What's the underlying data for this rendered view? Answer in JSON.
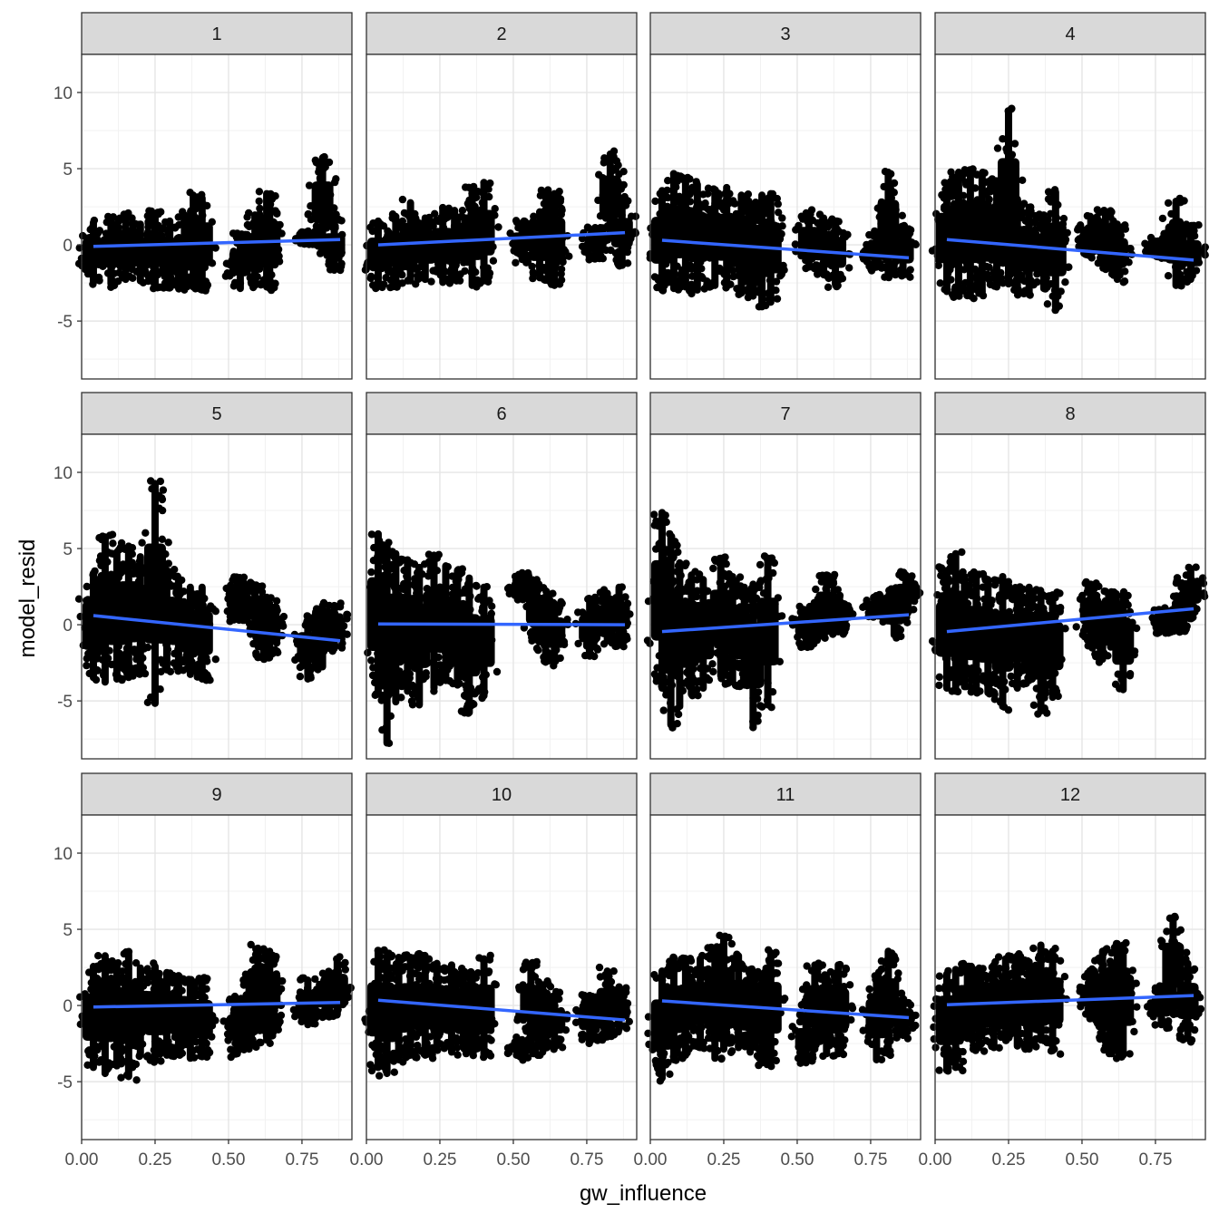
{
  "chart_data": {
    "type": "scatter",
    "facet_var_values": [
      "1",
      "2",
      "3",
      "4",
      "5",
      "6",
      "7",
      "8",
      "9",
      "10",
      "11",
      "12"
    ],
    "xlabel": "gw_influence",
    "ylabel": "model_resid",
    "xlim": [
      0.0,
      0.92
    ],
    "ylim": [
      -8.8,
      12.5
    ],
    "x_ticks": [
      0.0,
      0.25,
      0.5,
      0.75
    ],
    "x_tick_labels": [
      "0.00",
      "0.25",
      "0.50",
      "0.75"
    ],
    "y_ticks": [
      -5,
      0,
      5,
      10
    ],
    "y_tick_labels": [
      "-5",
      "0",
      "5",
      "10"
    ],
    "grid": true,
    "point_color": "#000000",
    "fit_line_color": "#3366FF",
    "panels": [
      {
        "label": "1",
        "fit": {
          "x": [
            0.04,
            0.88
          ],
          "y": [
            -0.1,
            0.35
          ]
        },
        "column_ranges": [
          [
            0.04,
            -2.7,
            1.7
          ],
          [
            0.1,
            -2.8,
            1.9
          ],
          [
            0.15,
            -2.5,
            2.2
          ],
          [
            0.2,
            -2.6,
            1.6
          ],
          [
            0.25,
            -2.9,
            2.3
          ],
          [
            0.3,
            -3.0,
            1.8
          ],
          [
            0.35,
            -3.2,
            2.2
          ],
          [
            0.38,
            -3.0,
            3.5
          ],
          [
            0.41,
            -3.2,
            3.3
          ],
          [
            0.54,
            -3.1,
            0.8
          ],
          [
            0.59,
            -2.9,
            2.2
          ],
          [
            0.63,
            -3.0,
            3.6
          ],
          [
            0.64,
            -3.1,
            3.4
          ],
          [
            0.77,
            0.0,
            0.9
          ],
          [
            0.82,
            -0.3,
            5.9
          ],
          [
            0.86,
            -1.9,
            1.8
          ]
        ]
      },
      {
        "label": "2",
        "fit": {
          "x": [
            0.04,
            0.88
          ],
          "y": [
            0.0,
            0.8
          ]
        },
        "column_ranges": [
          [
            0.04,
            -2.9,
            1.8
          ],
          [
            0.1,
            -2.8,
            2.1
          ],
          [
            0.15,
            -2.6,
            3.0
          ],
          [
            0.2,
            -2.5,
            2.0
          ],
          [
            0.26,
            -2.7,
            2.6
          ],
          [
            0.3,
            -2.5,
            2.5
          ],
          [
            0.36,
            -2.9,
            3.9
          ],
          [
            0.4,
            -2.6,
            4.2
          ],
          [
            0.53,
            -1.2,
            1.6
          ],
          [
            0.59,
            -2.4,
            2.4
          ],
          [
            0.62,
            -2.6,
            3.6
          ],
          [
            0.64,
            -2.9,
            3.6
          ],
          [
            0.78,
            -1.0,
            1.3
          ],
          [
            0.83,
            0.3,
            6.2
          ],
          [
            0.87,
            -1.4,
            3.0
          ]
        ]
      },
      {
        "label": "3",
        "fit": {
          "x": [
            0.04,
            0.88
          ],
          "y": [
            0.3,
            -0.85
          ]
        },
        "column_ranges": [
          [
            0.04,
            -3.2,
            3.8
          ],
          [
            0.08,
            -3.1,
            4.8
          ],
          [
            0.12,
            -3.0,
            4.6
          ],
          [
            0.16,
            -3.2,
            4.2
          ],
          [
            0.22,
            -2.9,
            3.8
          ],
          [
            0.26,
            -3.0,
            4.0
          ],
          [
            0.31,
            -3.4,
            3.5
          ],
          [
            0.35,
            -3.6,
            2.8
          ],
          [
            0.38,
            -4.3,
            3.5
          ],
          [
            0.41,
            -4.0,
            3.6
          ],
          [
            0.54,
            -1.7,
            2.3
          ],
          [
            0.59,
            -2.2,
            2.0
          ],
          [
            0.63,
            -2.8,
            1.8
          ],
          [
            0.77,
            -1.7,
            0.8
          ],
          [
            0.81,
            -2.3,
            5.0
          ],
          [
            0.86,
            -2.2,
            1.3
          ]
        ]
      },
      {
        "label": "4",
        "fit": {
          "x": [
            0.04,
            0.88
          ],
          "y": [
            0.35,
            -1.0
          ]
        },
        "column_ranges": [
          [
            0.04,
            -3.3,
            4.2
          ],
          [
            0.08,
            -3.5,
            5.0
          ],
          [
            0.12,
            -3.6,
            5.0
          ],
          [
            0.16,
            -3.4,
            4.8
          ],
          [
            0.21,
            -3.0,
            4.4
          ],
          [
            0.25,
            -2.8,
            9.0
          ],
          [
            0.28,
            -3.3,
            3.0
          ],
          [
            0.32,
            -3.5,
            2.7
          ],
          [
            0.37,
            -3.1,
            2.2
          ],
          [
            0.41,
            -4.3,
            3.7
          ],
          [
            0.53,
            -0.8,
            2.0
          ],
          [
            0.58,
            -1.8,
            2.4
          ],
          [
            0.62,
            -2.5,
            1.6
          ],
          [
            0.76,
            -0.8,
            0.5
          ],
          [
            0.82,
            -2.9,
            3.1
          ],
          [
            0.87,
            -2.5,
            1.4
          ]
        ]
      },
      {
        "label": "5",
        "fit": {
          "x": [
            0.04,
            0.88
          ],
          "y": [
            0.6,
            -1.05
          ]
        },
        "column_ranges": [
          [
            0.04,
            -3.7,
            3.6
          ],
          [
            0.08,
            -4.0,
            6.0
          ],
          [
            0.12,
            -3.8,
            5.0
          ],
          [
            0.16,
            -3.7,
            5.4
          ],
          [
            0.2,
            -3.4,
            4.7
          ],
          [
            0.25,
            -5.4,
            9.5
          ],
          [
            0.29,
            -3.2,
            3.8
          ],
          [
            0.33,
            -3.1,
            3.2
          ],
          [
            0.37,
            -3.5,
            2.7
          ],
          [
            0.41,
            -3.8,
            2.7
          ],
          [
            0.53,
            0.2,
            3.2
          ],
          [
            0.59,
            -0.5,
            2.8
          ],
          [
            0.62,
            -2.3,
            1.8
          ],
          [
            0.64,
            -2.4,
            1.6
          ],
          [
            0.77,
            -3.8,
            0.8
          ],
          [
            0.82,
            -3.0,
            1.5
          ],
          [
            0.86,
            -1.8,
            1.5
          ]
        ]
      },
      {
        "label": "6",
        "fit": {
          "x": [
            0.04,
            0.88
          ],
          "y": [
            0.05,
            0.0
          ]
        },
        "column_ranges": [
          [
            0.04,
            -4.8,
            6.2
          ],
          [
            0.07,
            -8.0,
            5.4
          ],
          [
            0.1,
            -5.3,
            4.9
          ],
          [
            0.14,
            -4.6,
            4.5
          ],
          [
            0.18,
            -5.5,
            4.0
          ],
          [
            0.23,
            -4.4,
            4.8
          ],
          [
            0.27,
            -3.9,
            4.1
          ],
          [
            0.31,
            -4.2,
            3.8
          ],
          [
            0.35,
            -6.0,
            3.3
          ],
          [
            0.4,
            -4.9,
            2.7
          ],
          [
            0.53,
            1.6,
            3.4
          ],
          [
            0.58,
            -1.2,
            3.2
          ],
          [
            0.61,
            -2.7,
            2.1
          ],
          [
            0.64,
            -2.4,
            1.6
          ],
          [
            0.76,
            -2.3,
            1.8
          ],
          [
            0.82,
            -1.3,
            2.3
          ],
          [
            0.86,
            -1.5,
            2.7
          ]
        ]
      },
      {
        "label": "7",
        "fit": {
          "x": [
            0.04,
            0.88
          ],
          "y": [
            -0.45,
            0.65
          ]
        },
        "column_ranges": [
          [
            0.04,
            -4.4,
            7.6
          ],
          [
            0.07,
            -6.8,
            6.0
          ],
          [
            0.1,
            -5.6,
            4.3
          ],
          [
            0.14,
            -4.8,
            3.5
          ],
          [
            0.18,
            -4.4,
            3.2
          ],
          [
            0.24,
            -3.6,
            4.6
          ],
          [
            0.28,
            -4.0,
            3.4
          ],
          [
            0.32,
            -4.2,
            2.7
          ],
          [
            0.35,
            -6.9,
            2.9
          ],
          [
            0.4,
            -5.5,
            4.6
          ],
          [
            0.53,
            -1.5,
            1.2
          ],
          [
            0.57,
            -1.1,
            1.8
          ],
          [
            0.6,
            -0.7,
            3.3
          ],
          [
            0.64,
            -0.7,
            2.0
          ],
          [
            0.77,
            0.5,
            2.0
          ],
          [
            0.83,
            -0.9,
            2.4
          ],
          [
            0.87,
            0.6,
            3.5
          ]
        ]
      },
      {
        "label": "8",
        "fit": {
          "x": [
            0.04,
            0.88
          ],
          "y": [
            -0.45,
            1.05
          ]
        },
        "column_ranges": [
          [
            0.04,
            -4.4,
            3.8
          ],
          [
            0.07,
            -4.6,
            4.9
          ],
          [
            0.1,
            -4.3,
            3.4
          ],
          [
            0.14,
            -4.6,
            3.5
          ],
          [
            0.18,
            -4.7,
            3.2
          ],
          [
            0.23,
            -5.6,
            3.4
          ],
          [
            0.28,
            -4.4,
            2.5
          ],
          [
            0.32,
            -3.9,
            2.7
          ],
          [
            0.36,
            -5.9,
            2.3
          ],
          [
            0.4,
            -5.0,
            2.2
          ],
          [
            0.53,
            -1.1,
            2.9
          ],
          [
            0.57,
            -2.5,
            1.5
          ],
          [
            0.6,
            -1.2,
            2.4
          ],
          [
            0.64,
            -4.5,
            2.2
          ],
          [
            0.77,
            -0.6,
            1.0
          ],
          [
            0.83,
            -0.5,
            1.9
          ],
          [
            0.87,
            0.4,
            3.9
          ]
        ]
      },
      {
        "label": "9",
        "fit": {
          "x": [
            0.04,
            0.88
          ],
          "y": [
            -0.1,
            0.2
          ]
        },
        "column_ranges": [
          [
            0.04,
            -4.3,
            2.8
          ],
          [
            0.08,
            -4.7,
            3.5
          ],
          [
            0.12,
            -4.2,
            3.0
          ],
          [
            0.16,
            -4.9,
            3.6
          ],
          [
            0.2,
            -3.5,
            2.7
          ],
          [
            0.25,
            -3.8,
            2.8
          ],
          [
            0.29,
            -3.5,
            2.4
          ],
          [
            0.33,
            -3.4,
            2.2
          ],
          [
            0.37,
            -3.7,
            1.8
          ],
          [
            0.41,
            -3.6,
            1.9
          ],
          [
            0.53,
            -3.4,
            0.5
          ],
          [
            0.57,
            -3.1,
            2.1
          ],
          [
            0.6,
            -1.5,
            4.0
          ],
          [
            0.63,
            -2.5,
            1.5
          ],
          [
            0.64,
            -1.8,
            3.8
          ],
          [
            0.77,
            -1.5,
            1.9
          ],
          [
            0.83,
            -0.8,
            1.6
          ],
          [
            0.87,
            -0.8,
            3.2
          ]
        ]
      },
      {
        "label": "10",
        "fit": {
          "x": [
            0.04,
            0.88
          ],
          "y": [
            0.35,
            -0.95
          ]
        },
        "column_ranges": [
          [
            0.04,
            -4.3,
            3.8
          ],
          [
            0.07,
            -4.7,
            3.5
          ],
          [
            0.11,
            -3.8,
            3.4
          ],
          [
            0.15,
            -3.5,
            3.4
          ],
          [
            0.2,
            -3.5,
            3.4
          ],
          [
            0.24,
            -3.0,
            3.0
          ],
          [
            0.29,
            -3.3,
            2.9
          ],
          [
            0.33,
            -3.0,
            2.5
          ],
          [
            0.36,
            -3.3,
            2.3
          ],
          [
            0.4,
            -3.6,
            3.3
          ],
          [
            0.53,
            -3.6,
            -2.0
          ],
          [
            0.56,
            -2.6,
            2.9
          ],
          [
            0.6,
            -3.3,
            1.6
          ],
          [
            0.64,
            -2.9,
            0.9
          ],
          [
            0.76,
            -2.6,
            0.9
          ],
          [
            0.82,
            -2.3,
            2.5
          ],
          [
            0.86,
            -1.8,
            1.3
          ]
        ]
      },
      {
        "label": "11",
        "fit": {
          "x": [
            0.04,
            0.88
          ],
          "y": [
            0.3,
            -0.8
          ]
        },
        "column_ranges": [
          [
            0.04,
            -5.0,
            2.5
          ],
          [
            0.08,
            -3.8,
            3.3
          ],
          [
            0.12,
            -3.5,
            3.2
          ],
          [
            0.17,
            -3.0,
            3.3
          ],
          [
            0.22,
            -3.7,
            3.9
          ],
          [
            0.25,
            -3.1,
            4.7
          ],
          [
            0.3,
            -3.0,
            3.5
          ],
          [
            0.34,
            -3.3,
            2.6
          ],
          [
            0.38,
            -4.0,
            2.2
          ],
          [
            0.41,
            -4.0,
            3.7
          ],
          [
            0.53,
            -4.0,
            -0.5
          ],
          [
            0.56,
            -3.1,
            2.9
          ],
          [
            0.6,
            -3.4,
            2.1
          ],
          [
            0.64,
            -3.4,
            2.9
          ],
          [
            0.77,
            -3.8,
            2.1
          ],
          [
            0.81,
            -3.4,
            3.8
          ],
          [
            0.86,
            -2.2,
            0.6
          ]
        ]
      },
      {
        "label": "12",
        "fit": {
          "x": [
            0.04,
            0.88
          ],
          "y": [
            0.05,
            0.65
          ]
        },
        "column_ranges": [
          [
            0.04,
            -4.5,
            2.3
          ],
          [
            0.07,
            -4.3,
            2.6
          ],
          [
            0.11,
            -2.4,
            2.8
          ],
          [
            0.15,
            -3.0,
            2.7
          ],
          [
            0.2,
            -3.0,
            2.9
          ],
          [
            0.24,
            -2.5,
            3.3
          ],
          [
            0.28,
            -2.9,
            3.5
          ],
          [
            0.32,
            -3.1,
            3.1
          ],
          [
            0.36,
            -2.5,
            4.2
          ],
          [
            0.4,
            -3.2,
            3.8
          ],
          [
            0.53,
            -1.0,
            2.3
          ],
          [
            0.57,
            -2.2,
            3.8
          ],
          [
            0.6,
            -3.2,
            2.2
          ],
          [
            0.62,
            -3.2,
            4.3
          ],
          [
            0.64,
            -3.5,
            4.2
          ],
          [
            0.77,
            -1.5,
            1.3
          ],
          [
            0.81,
            -0.7,
            6.0
          ],
          [
            0.86,
            -2.4,
            3.0
          ]
        ]
      }
    ]
  }
}
